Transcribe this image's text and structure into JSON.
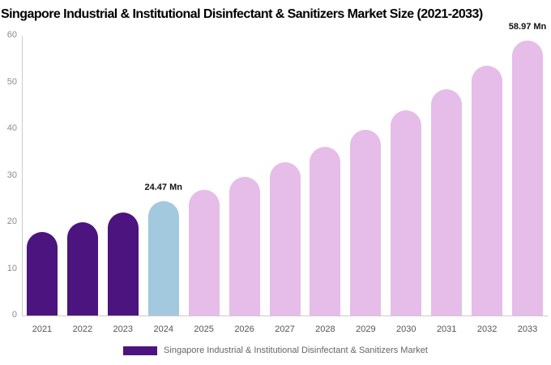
{
  "chart_data": {
    "type": "bar",
    "title": "Singapore Industrial & Institutional Disinfectant & Sanitizers Market Size (2021-2033)",
    "unit": "Mn",
    "categories": [
      "2021",
      "2022",
      "2023",
      "2024",
      "2025",
      "2026",
      "2027",
      "2028",
      "2029",
      "2030",
      "2031",
      "2032",
      "2033"
    ],
    "values": [
      17.9,
      20.0,
      22.1,
      24.47,
      26.98,
      29.75,
      32.81,
      36.18,
      39.89,
      43.99,
      48.51,
      53.49,
      58.97
    ],
    "bar_roles": [
      "historical",
      "historical",
      "historical",
      "base_year",
      "forecast",
      "forecast",
      "forecast",
      "forecast",
      "forecast",
      "forecast",
      "forecast",
      "forecast",
      "forecast"
    ],
    "colors": {
      "historical": "#4B147E",
      "base_year": "#A2C9DD",
      "forecast": "#E5BDE8"
    },
    "xlabel": "",
    "ylabel": "",
    "ylim": [
      0,
      60
    ],
    "yticks": [
      0,
      10,
      20,
      30,
      40,
      50,
      60
    ],
    "grid": false,
    "annotations": [
      {
        "category": "2024",
        "text": "24.47 Mn"
      },
      {
        "category": "2033",
        "text": "58.97 Mn"
      }
    ],
    "legend": {
      "label": "Singapore Industrial & Institutional Disinfectant & Sanitizers Market",
      "color": "#4B147E",
      "position": "bottom"
    },
    "title_color": "#000000",
    "axis_color": "#cccccc",
    "ytick_color": "#8c8c8c",
    "xtick_color": "#555555",
    "annotation_color": "#111111",
    "legend_text_color": "#666666"
  }
}
